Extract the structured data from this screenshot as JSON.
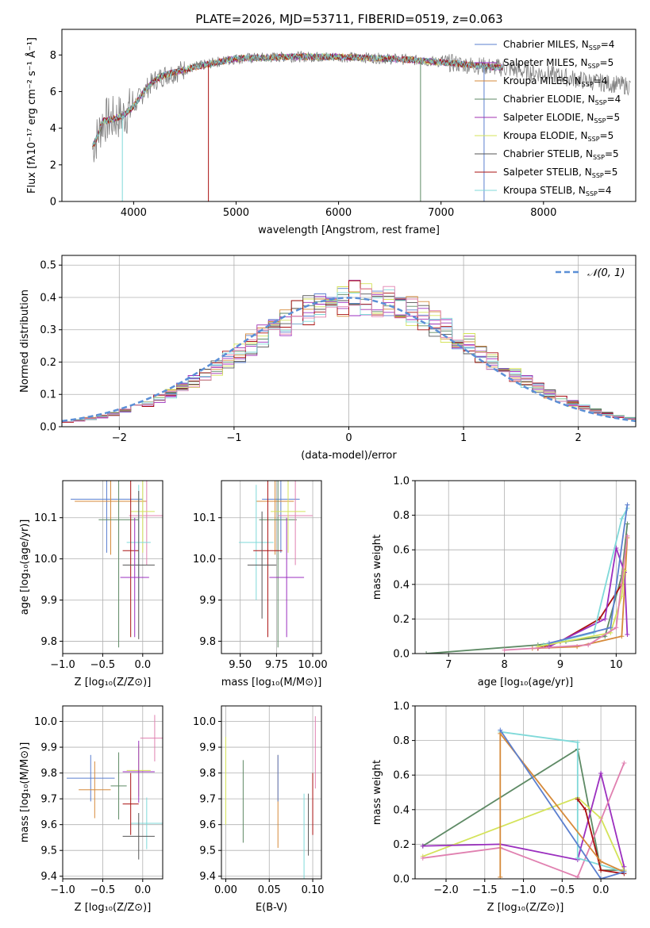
{
  "title": "PLATE=2026, MJD=53711, FIBERID=0519, z=0.063",
  "colors": [
    "#5b7fcf",
    "#9b2fbf",
    "#d68a3a",
    "#5e8a65",
    "#a030b0",
    "#d4e35a",
    "#555555",
    "#aa1111",
    "#7fd9d9",
    "#e080b0"
  ],
  "chart_data": [
    {
      "id": "spectrum",
      "type": "line",
      "xlabel": "wavelength [Angstrom, rest frame]",
      "ylabel": "Flux [fλ10⁻¹⁷ erg cm⁻² s⁻¹ Å⁻¹]",
      "xlim": [
        3300,
        8900
      ],
      "ylim": [
        0,
        9.4
      ],
      "xticks": [
        4000,
        5000,
        6000,
        7000,
        8000
      ],
      "yticks": [
        0,
        2,
        4,
        6,
        8
      ],
      "legend_placement": "right",
      "series": [
        {
          "name": "Chabrier MILES, N_SSP=4"
        },
        {
          "name": "Salpeter MILES, N_SSP=5"
        },
        {
          "name": "Kroupa MILES, N_SSP=4"
        },
        {
          "name": "Chabrier ELODIE, N_SSP=4"
        },
        {
          "name": "Salpeter ELODIE, N_SSP=5"
        },
        {
          "name": "Kroupa ELODIE, N_SSP=5"
        },
        {
          "name": "Chabrier STELIB, N_SSP=5"
        },
        {
          "name": "Salpeter STELIB, N_SSP=5"
        },
        {
          "name": "Kroupa STELIB, N_SSP=4"
        }
      ],
      "model_curve": {
        "x": [
          3600,
          3650,
          3700,
          3800,
          3900,
          4000,
          4100,
          4200,
          4300,
          4500,
          4800,
          5000,
          5500,
          6000,
          6500,
          6800,
          7000,
          7200,
          7400,
          7600,
          7800,
          8000,
          8200,
          8400,
          8700,
          8850
        ],
        "y": [
          3.0,
          3.6,
          4.4,
          4.5,
          4.7,
          5.2,
          6.0,
          6.6,
          6.9,
          7.2,
          7.6,
          7.8,
          7.9,
          7.9,
          7.8,
          7.7,
          7.6,
          7.5,
          7.4,
          7.3,
          7.1,
          7.0,
          6.8,
          6.6,
          6.4,
          6.3
        ]
      },
      "data_end": 7600
    },
    {
      "id": "residuals",
      "type": "histogram",
      "xlabel": "(data-model)/error",
      "ylabel": "Normed distribution",
      "xlim": [
        -2.5,
        2.5
      ],
      "ylim": [
        0,
        0.53
      ],
      "xticks": [
        -2,
        -1,
        0,
        1,
        2
      ],
      "yticks": [
        0.0,
        0.1,
        0.2,
        0.3,
        0.4,
        0.5
      ],
      "legend": "𝒩(0, 1)",
      "legend_placement": "top-right",
      "bin_width": 0.1,
      "max_y": 0.5
    },
    {
      "id": "age-vs-Z",
      "type": "errorbar",
      "xlabel": "Z [log₁₀(Z/Z⊙)]",
      "ylabel": "age  [log₁₀(age/yr)]",
      "xlim": [
        -1.0,
        0.25
      ],
      "ylim": [
        9.77,
        10.19
      ],
      "xticks": [
        -1.0,
        -0.5,
        0.0
      ],
      "yticks": [
        9.8,
        9.9,
        10.0,
        10.1
      ],
      "points": [
        {
          "x": -0.45,
          "y": 10.145,
          "xerr": 0.45,
          "yerr": 0.13,
          "c": 0
        },
        {
          "x": -0.4,
          "y": 10.14,
          "xerr": 0.45,
          "yerr": 0.13,
          "c": 2
        },
        {
          "x": -0.3,
          "y": 10.095,
          "xerr": 0.25,
          "yerr": 0.31,
          "c": 3
        },
        {
          "x": 0.05,
          "y": 10.105,
          "xerr": 0.22,
          "yerr": 0.12,
          "c": 9
        },
        {
          "x": 0.0,
          "y": 10.115,
          "xerr": 0.15,
          "yerr": 0.1,
          "c": 5
        },
        {
          "x": -0.05,
          "y": 10.04,
          "xerr": 0.15,
          "yerr": 0.14,
          "c": 8
        },
        {
          "x": -0.15,
          "y": 10.02,
          "xerr": 0.1,
          "yerr": 0.21,
          "c": 7
        },
        {
          "x": -0.05,
          "y": 9.985,
          "xerr": 0.2,
          "yerr": 0.18,
          "c": 6
        },
        {
          "x": -0.1,
          "y": 9.955,
          "xerr": 0.18,
          "yerr": 0.145,
          "c": 1
        }
      ]
    },
    {
      "id": "age-vs-mass",
      "type": "errorbar",
      "xlabel": "mass [log₁₀(M/M⊙)]",
      "ylabel": "",
      "xlim": [
        9.37,
        10.06
      ],
      "ylim": [
        9.77,
        10.19
      ],
      "xticks": [
        9.5,
        9.75,
        10.0
      ],
      "yticks": [
        9.8,
        9.9,
        10.0,
        10.1
      ],
      "points": [
        {
          "x": 9.78,
          "y": 10.145,
          "xerr": 0.13,
          "yerr": 0.13,
          "c": 0
        },
        {
          "x": 9.74,
          "y": 10.14,
          "xerr": 0.13,
          "yerr": 0.13,
          "c": 2
        },
        {
          "x": 9.76,
          "y": 10.095,
          "xerr": 0.13,
          "yerr": 0.31,
          "c": 3
        },
        {
          "x": 9.88,
          "y": 10.105,
          "xerr": 0.12,
          "yerr": 0.12,
          "c": 9
        },
        {
          "x": 9.83,
          "y": 10.115,
          "xerr": 0.12,
          "yerr": 0.1,
          "c": 5
        },
        {
          "x": 9.61,
          "y": 10.04,
          "xerr": 0.12,
          "yerr": 0.14,
          "c": 8
        },
        {
          "x": 9.69,
          "y": 10.02,
          "xerr": 0.1,
          "yerr": 0.21,
          "c": 7
        },
        {
          "x": 9.65,
          "y": 9.985,
          "xerr": 0.1,
          "yerr": 0.13,
          "c": 6
        },
        {
          "x": 9.82,
          "y": 9.955,
          "xerr": 0.12,
          "yerr": 0.145,
          "c": 1
        }
      ]
    },
    {
      "id": "weight-vs-age",
      "type": "line",
      "xlabel": "age  [log₁₀(age/yr)]",
      "ylabel": "mass weight",
      "xlim": [
        6.4,
        10.35
      ],
      "ylim": [
        0,
        1.0
      ],
      "xticks": [
        7,
        8,
        9,
        10
      ],
      "yticks": [
        0.0,
        0.2,
        0.4,
        0.6,
        0.8,
        1.0
      ],
      "series": [
        {
          "c": 3,
          "x": [
            6.6,
            8.6,
            9.1,
            9.8,
            10.1,
            10.2
          ],
          "y": [
            0.0,
            0.05,
            0.07,
            0.1,
            0.45,
            0.75
          ]
        },
        {
          "c": 2,
          "x": [
            8.5,
            9.3,
            10.1,
            10.2
          ],
          "y": [
            0.03,
            0.04,
            0.1,
            0.67
          ]
        },
        {
          "c": 7,
          "x": [
            8.6,
            9.0,
            9.7,
            10.1,
            10.15
          ],
          "y": [
            0.03,
            0.07,
            0.2,
            0.4,
            0.47
          ]
        },
        {
          "c": 1,
          "x": [
            8.8,
            9.8,
            10.0,
            10.15,
            10.2
          ],
          "y": [
            0.04,
            0.2,
            0.61,
            0.47,
            0.11
          ]
        },
        {
          "c": 8,
          "x": [
            8.7,
            9.6,
            10.1,
            10.2
          ],
          "y": [
            0.05,
            0.12,
            0.78,
            0.84
          ]
        },
        {
          "c": 5,
          "x": [
            8.6,
            9.9,
            10.1,
            10.15
          ],
          "y": [
            0.04,
            0.12,
            0.33,
            0.48
          ]
        },
        {
          "c": 0,
          "x": [
            8.8,
            9.9,
            10.2
          ],
          "y": [
            0.06,
            0.15,
            0.86
          ]
        },
        {
          "c": 9,
          "x": [
            8.0,
            9.5,
            10.0,
            10.2
          ],
          "y": [
            0.02,
            0.05,
            0.15,
            0.68
          ]
        }
      ]
    },
    {
      "id": "mass-vs-Z",
      "type": "errorbar",
      "xlabel": "Z [log₁₀(Z/Z⊙)]",
      "ylabel": "mass [log₁₀(M/M⊙)]",
      "xlim": [
        -1.0,
        0.25
      ],
      "ylim": [
        9.39,
        10.06
      ],
      "xticks": [
        -1.0,
        -0.5,
        0.0
      ],
      "yticks": [
        9.4,
        9.5,
        9.6,
        9.7,
        9.8,
        9.9,
        10.0
      ],
      "points": [
        {
          "x": -0.65,
          "y": 9.78,
          "xerr": 0.3,
          "yerr": 0.09,
          "c": 0
        },
        {
          "x": -0.6,
          "y": 9.735,
          "xerr": 0.2,
          "yerr": 0.11,
          "c": 2
        },
        {
          "x": -0.3,
          "y": 9.75,
          "xerr": 0.1,
          "yerr": 0.13,
          "c": 3
        },
        {
          "x": 0.15,
          "y": 9.935,
          "xerr": 0.18,
          "yerr": 0.09,
          "c": 9
        },
        {
          "x": -0.05,
          "y": 9.81,
          "xerr": 0.15,
          "yerr": 0.1,
          "c": 5
        },
        {
          "x": 0.05,
          "y": 9.605,
          "xerr": 0.2,
          "yerr": 0.1,
          "c": 8
        },
        {
          "x": -0.15,
          "y": 9.68,
          "xerr": 0.1,
          "yerr": 0.12,
          "c": 7
        },
        {
          "x": -0.05,
          "y": 9.555,
          "xerr": 0.2,
          "yerr": 0.09,
          "c": 6
        },
        {
          "x": -0.05,
          "y": 9.805,
          "xerr": 0.2,
          "yerr": 0.12,
          "c": 1
        }
      ]
    },
    {
      "id": "mass-vs-EBV",
      "type": "errorbar",
      "xlabel": "E(B-V)",
      "ylabel": "",
      "xlim": [
        -0.005,
        0.11
      ],
      "ylim": [
        9.39,
        10.06
      ],
      "xticks": [
        0.0,
        0.05,
        0.1
      ],
      "yticks": [
        9.4,
        9.5,
        9.6,
        9.7,
        9.8,
        9.9,
        10.0
      ],
      "points": [
        {
          "x": 0.0,
          "y": 9.77,
          "xerr": 0,
          "yerr": 0.17,
          "c": 5
        },
        {
          "x": 0.02,
          "y": 9.69,
          "xerr": 0,
          "yerr": 0.16,
          "c": 3
        },
        {
          "x": 0.06,
          "y": 9.69,
          "xerr": 0,
          "yerr": 0.18,
          "c": 2
        },
        {
          "x": 0.06,
          "y": 9.78,
          "xerr": 0,
          "yerr": 0.09,
          "c": 0
        },
        {
          "x": 0.09,
          "y": 9.55,
          "xerr": 0,
          "yerr": 0.17,
          "c": 8
        },
        {
          "x": 0.095,
          "y": 9.6,
          "xerr": 0,
          "yerr": 0.12,
          "c": 6
        },
        {
          "x": 0.1,
          "y": 9.68,
          "xerr": 0,
          "yerr": 0.12,
          "c": 7
        },
        {
          "x": 0.103,
          "y": 9.88,
          "xerr": 0,
          "yerr": 0.14,
          "c": 9
        }
      ]
    },
    {
      "id": "weight-vs-Z",
      "type": "line",
      "xlabel": "Z [log₁₀(Z/Z⊙)]",
      "ylabel": "mass weight",
      "xlim": [
        -2.4,
        0.45
      ],
      "ylim": [
        0,
        1.0
      ],
      "xticks": [
        -2.0,
        -1.5,
        -1.0,
        -0.5,
        0.0
      ],
      "yticks": [
        0.0,
        0.2,
        0.4,
        0.6,
        0.8,
        1.0
      ],
      "series": [
        {
          "c": 3,
          "x": [
            -2.3,
            -0.3,
            0.0,
            0.3
          ],
          "y": [
            0.19,
            0.75,
            0.05,
            0.05
          ]
        },
        {
          "c": 5,
          "x": [
            -2.3,
            -0.3,
            0.0,
            0.3
          ],
          "y": [
            0.13,
            0.47,
            0.35,
            0.05
          ]
        },
        {
          "c": 1,
          "x": [
            -2.3,
            -1.3,
            -0.3,
            0.0,
            0.3
          ],
          "y": [
            0.19,
            0.2,
            0.11,
            0.61,
            0.07
          ]
        },
        {
          "c": 9,
          "x": [
            -2.3,
            -1.3,
            -0.3,
            0.3
          ],
          "y": [
            0.12,
            0.18,
            0.01,
            0.67
          ]
        },
        {
          "c": 8,
          "x": [
            -1.3,
            -0.3,
            -0.3,
            0.3
          ],
          "y": [
            0.85,
            0.79,
            0.12,
            0.04
          ]
        },
        {
          "c": 7,
          "x": [
            -0.3,
            -0.2,
            0.0,
            0.3
          ],
          "y": [
            0.46,
            0.4,
            0.05,
            0.03
          ]
        },
        {
          "c": 2,
          "x": [
            -1.3,
            -1.3,
            -0.0,
            0.3
          ],
          "y": [
            0.01,
            0.84,
            0.1,
            0.04
          ]
        },
        {
          "c": 0,
          "x": [
            -1.3,
            -0.0,
            0.3
          ],
          "y": [
            0.86,
            0.0,
            0.04
          ]
        }
      ]
    }
  ]
}
